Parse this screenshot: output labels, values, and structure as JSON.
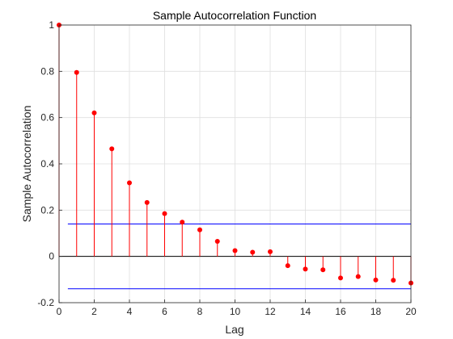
{
  "chart_data": {
    "type": "stem",
    "title": "Sample Autocorrelation Function",
    "xlabel": "Lag",
    "ylabel": "Sample Autocorrelation",
    "xlim": [
      0,
      20
    ],
    "ylim": [
      -0.2,
      1
    ],
    "grid": true,
    "x_ticks": [
      "0",
      "2",
      "4",
      "6",
      "8",
      "10",
      "12",
      "14",
      "16",
      "18",
      "20"
    ],
    "y_ticks": [
      "-0.2",
      "0",
      "0.2",
      "0.4",
      "0.6",
      "0.8",
      "1"
    ],
    "x": [
      0,
      1,
      2,
      3,
      4,
      5,
      6,
      7,
      8,
      9,
      10,
      11,
      12,
      13,
      14,
      15,
      16,
      17,
      18,
      19,
      20
    ],
    "values": [
      1.0,
      0.795,
      0.62,
      0.465,
      0.318,
      0.233,
      0.185,
      0.148,
      0.115,
      0.065,
      0.025,
      0.018,
      0.02,
      -0.04,
      -0.055,
      -0.058,
      -0.093,
      -0.087,
      -0.102,
      -0.103,
      -0.115
    ],
    "confidence_bounds": [
      0.14,
      -0.14
    ],
    "colors": {
      "stems": "#FF0000",
      "markers": "#FF0000",
      "bounds": "#0000FF",
      "zero_line": "#000000"
    }
  }
}
